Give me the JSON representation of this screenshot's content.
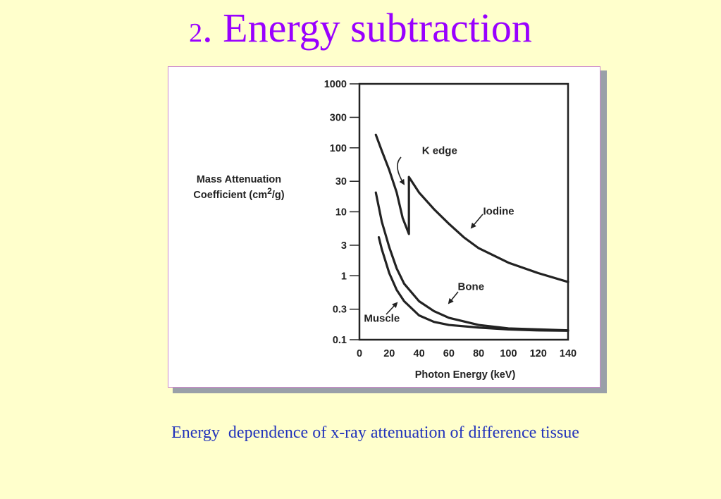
{
  "slide": {
    "title_number": "2",
    "title_text": ". Energy subtraction",
    "caption": "Energy  dependence of x-ray attenuation of difference tissue"
  },
  "colors": {
    "background": "#ffffcc",
    "title": "#9900ff",
    "caption": "#2233bb"
  },
  "chart_data": {
    "type": "line",
    "title": "",
    "xlabel": "Photon Energy (keV)",
    "ylabel_lines": [
      "Mass Attenuation",
      "Coefficient (cm",
      "2",
      "/g)"
    ],
    "xlim": [
      0,
      140
    ],
    "ylim": [
      0.1,
      1000
    ],
    "yscale": "log",
    "x_ticks": [
      0,
      20,
      40,
      60,
      80,
      100,
      120,
      140
    ],
    "y_ticks": [
      {
        "value": 1000,
        "label": "1000"
      },
      {
        "value": 300,
        "label": "300"
      },
      {
        "value": 100,
        "label": "100"
      },
      {
        "value": 30,
        "label": "30"
      },
      {
        "value": 10,
        "label": "10"
      },
      {
        "value": 3,
        "label": "3"
      },
      {
        "value": 1,
        "label": "1"
      },
      {
        "value": 0.3,
        "label": "0.3"
      },
      {
        "value": 0.1,
        "label": "0.1"
      }
    ],
    "grid": false,
    "series": [
      {
        "name": "Iodine",
        "x": [
          11,
          15,
          20,
          25,
          29,
          33.2,
          33.2,
          40,
          50,
          60,
          70,
          80,
          100,
          120,
          140
        ],
        "y": [
          160,
          90,
          45,
          20,
          8,
          4.5,
          35,
          20,
          11,
          6.5,
          4.0,
          2.7,
          1.6,
          1.1,
          0.8
        ]
      },
      {
        "name": "Bone",
        "x": [
          11,
          15,
          20,
          25,
          30,
          40,
          50,
          60,
          80,
          100,
          120,
          140
        ],
        "y": [
          20,
          7,
          2.8,
          1.3,
          0.75,
          0.4,
          0.28,
          0.22,
          0.17,
          0.15,
          0.145,
          0.14
        ]
      },
      {
        "name": "Muscle",
        "x": [
          13,
          15,
          20,
          25,
          30,
          40,
          50,
          60,
          80,
          100,
          120,
          140
        ],
        "y": [
          4,
          2.6,
          1.1,
          0.6,
          0.4,
          0.24,
          0.19,
          0.17,
          0.155,
          0.145,
          0.14,
          0.138
        ]
      }
    ],
    "annotations": [
      {
        "text": "K edge",
        "x": 42,
        "y": 80
      },
      {
        "text": "Iodine",
        "x": 83,
        "y": 9
      },
      {
        "text": "Bone",
        "x": 66,
        "y": 0.6
      },
      {
        "text": "Muscle",
        "x": 3,
        "y": 0.19
      }
    ]
  }
}
